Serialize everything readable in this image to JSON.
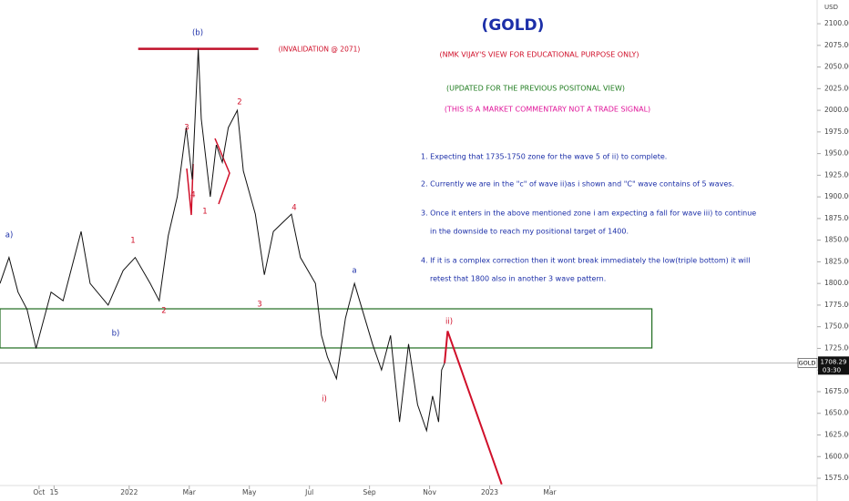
{
  "chart_data": {
    "type": "line",
    "title": "(GOLD)",
    "y_axis_label": "USD",
    "xlim": [
      8.7,
      35.9
    ],
    "ylim": [
      1566.6,
      2127.4
    ],
    "xticks": [
      {
        "value": 10,
        "label": "Oct"
      },
      {
        "value": 10.5,
        "label": "15"
      },
      {
        "value": 13,
        "label": "2022"
      },
      {
        "value": 15,
        "label": "Mar"
      },
      {
        "value": 17,
        "label": "May"
      },
      {
        "value": 19,
        "label": "Jul"
      },
      {
        "value": 21,
        "label": "Sep"
      },
      {
        "value": 23,
        "label": "Nov"
      },
      {
        "value": 25,
        "label": "2023"
      },
      {
        "value": 27,
        "label": "Mar"
      }
    ],
    "yticks": [
      {
        "value": 2100,
        "label": "2100.00"
      },
      {
        "value": 2075,
        "label": "2075.00"
      },
      {
        "value": 2050,
        "label": "2050.00"
      },
      {
        "value": 2025,
        "label": "2025.00"
      },
      {
        "value": 2000,
        "label": "2000.00"
      },
      {
        "value": 1975,
        "label": "1975.00"
      },
      {
        "value": 1950,
        "label": "1950.00"
      },
      {
        "value": 1925,
        "label": "1925.00"
      },
      {
        "value": 1900,
        "label": "1900.00"
      },
      {
        "value": 1875,
        "label": "1875.00"
      },
      {
        "value": 1850,
        "label": "1850.00"
      },
      {
        "value": 1825,
        "label": "1825.00"
      },
      {
        "value": 1800,
        "label": "1800.00"
      },
      {
        "value": 1775,
        "label": "1775.00"
      },
      {
        "value": 1750,
        "label": "1750.00"
      },
      {
        "value": 1725,
        "label": "1725.00"
      },
      {
        "value": 1700,
        "label": "1700.00"
      },
      {
        "value": 1675,
        "label": "1675.00"
      },
      {
        "value": 1650,
        "label": "1650.00"
      },
      {
        "value": 1625,
        "label": "1625.00"
      },
      {
        "value": 1600,
        "label": "1600.00"
      },
      {
        "value": 1575,
        "label": "1575.00"
      }
    ],
    "series": [
      {
        "name": "GOLD",
        "color": "#111111",
        "x": [
          8.7,
          9.0,
          9.3,
          9.6,
          9.9,
          10.4,
          10.8,
          11.4,
          11.7,
          12.3,
          12.8,
          13.2,
          13.7,
          14.0,
          14.3,
          14.6,
          14.9,
          15.1,
          15.3,
          15.4,
          15.7,
          15.9,
          16.1,
          16.3,
          16.6,
          16.8,
          17.2,
          17.5,
          17.8,
          18.1,
          18.4,
          18.7,
          19.2,
          19.4,
          19.6,
          19.9,
          20.2,
          20.5,
          20.8,
          21.1,
          21.4,
          21.7,
          22.0,
          22.2,
          22.3,
          22.6,
          22.9,
          23.1,
          23.3,
          23.4,
          23.5
        ],
        "values": [
          1800,
          1830,
          1790,
          1770,
          1725,
          1790,
          1780,
          1860,
          1800,
          1775,
          1815,
          1830,
          1800,
          1780,
          1855,
          1900,
          1980,
          1920,
          2071,
          1990,
          1900,
          1960,
          1940,
          1980,
          2000,
          1930,
          1880,
          1810,
          1860,
          1870,
          1880,
          1830,
          1800,
          1740,
          1715,
          1690,
          1760,
          1800,
          1765,
          1730,
          1700,
          1740,
          1640,
          1700,
          1730,
          1660,
          1630,
          1670,
          1640,
          1700,
          1708
        ]
      },
      {
        "name": "projection",
        "color": "#d0102a",
        "x": [
          23.5,
          23.6,
          25.4
        ],
        "values": [
          1708,
          1745,
          1568
        ]
      }
    ],
    "last_price": {
      "symbol": "GOLD",
      "value": 1708.29,
      "label": "1708.29",
      "time": "03:30"
    },
    "invalidation": {
      "value": 2071,
      "label": "(INVALIDATION @ 2071)",
      "x": [
        13.3,
        17.3
      ]
    },
    "zone": {
      "values": [
        1725.5,
        1770.7
      ],
      "color": "#1e6b1e",
      "x": [
        8.7,
        30.4
      ]
    },
    "annotations": [
      {
        "text": "(NMK VIJAY'S VIEW FOR EDUCATIONAL PURPOSE ONLY)",
        "color": "#d0102a"
      },
      {
        "text": "(UPDATED FOR THE PREVIOUS POSITONAL VIEW)",
        "color": "#1e7b1e"
      },
      {
        "text": "(THIS IS A MARKET COMMENTARY NOT A TRADE SIGNAL)",
        "color": "#e0159a"
      },
      {
        "text": "1. Expecting that 1735-1750 zone for the wave 5 of ii) to complete.",
        "color": "#1c2fa8"
      },
      {
        "text": "2. Currently we are in the \"c\" of wave ii)as i shown and \"C\" wave contains of 5 waves.",
        "color": "#1c2fa8"
      },
      {
        "text": "3. Once it enters in the above mentioned zone i am expecting a fall for wave iii) to continue",
        "color": "#1c2fa8"
      },
      {
        "text": "in the downside to reach my positional target of 1400.",
        "color": "#1c2fa8"
      },
      {
        "text": "4. If it is a complex correction then it wont break immediately the low(triple bottom) it will",
        "color": "#1c2fa8"
      },
      {
        "text": "retest that 1800 also in another 3 wave pattern.",
        "color": "#1c2fa8"
      },
      {
        "text": "(b)",
        "color": "#1c2fa8"
      },
      {
        "text": "a)",
        "color": "#1c2fa8"
      },
      {
        "text": "b)",
        "color": "#1c2fa8"
      },
      {
        "text": "a",
        "color": "#1c2fa8"
      },
      {
        "text": "3",
        "color": "#d0102a"
      },
      {
        "text": "4",
        "color": "#d0102a"
      },
      {
        "text": "1",
        "color": "#d0102a"
      },
      {
        "text": "2",
        "color": "#d0102a"
      },
      {
        "text": "1",
        "color": "#d0102a"
      },
      {
        "text": "2",
        "color": "#d0102a"
      },
      {
        "text": "4",
        "color": "#d0102a"
      },
      {
        "text": "3",
        "color": "#d0102a"
      },
      {
        "text": "i)",
        "color": "#d0102a"
      },
      {
        "text": "ii)",
        "color": "#d0102a"
      }
    ]
  }
}
